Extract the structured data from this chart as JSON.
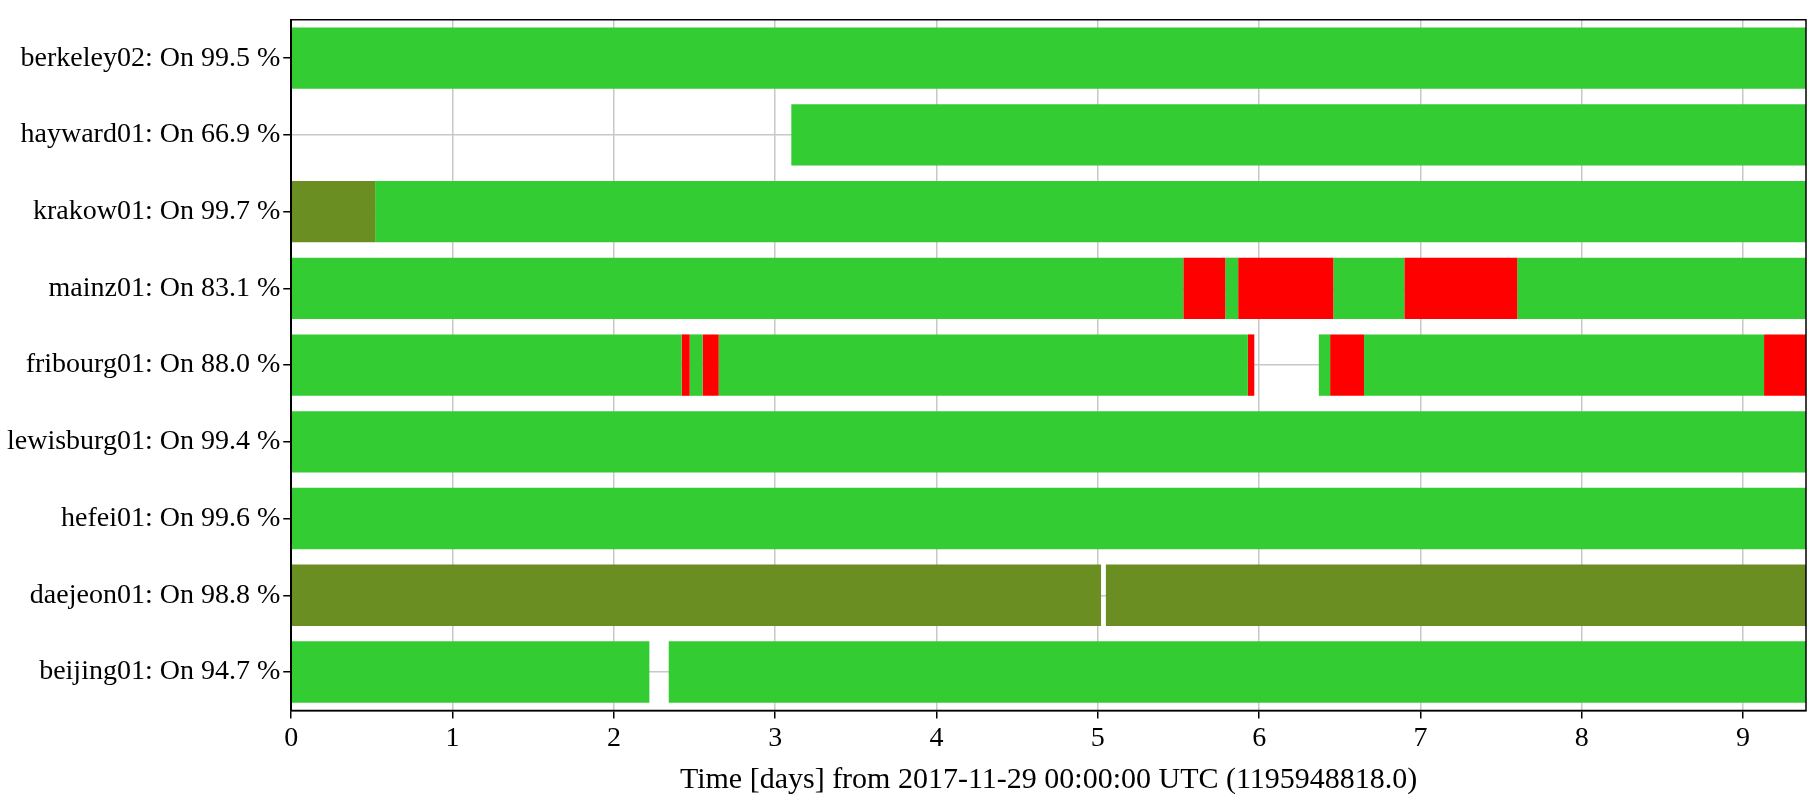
{
  "chart_data": {
    "type": "bar",
    "orientation": "horizontal",
    "xlabel": "Time [days] from 2017-11-29 00:00:00 UTC (1195948818.0)",
    "categories": [
      "berkeley02: On 99.5 %",
      "hayward01: On 66.9 %",
      "krakow01: On 99.7 %",
      "mainz01: On 83.1 %",
      "fribourg01: On 88.0 %",
      "lewisburg01: On 99.4 %",
      "hefei01: On 99.6 %",
      "daejeon01: On 98.8 %",
      "beijing01: On 94.7 %"
    ],
    "xlim": [
      0,
      9.39
    ],
    "xticks": [
      0,
      1,
      2,
      3,
      4,
      5,
      6,
      7,
      8,
      9
    ],
    "grid": true,
    "series": [
      {
        "colors": [
          "#33cc33",
          "#33cc33",
          "#6b8e23",
          "#33cc33",
          "#33cc33",
          "#33cc33",
          "#33cc33",
          "#6b8e23",
          "#33cc33"
        ],
        "base": [
          0,
          3.1,
          0,
          0,
          0,
          0,
          0,
          0,
          0
        ],
        "values": [
          9.39,
          6.29,
          0.52,
          5.53,
          2.42,
          9.39,
          9.39,
          5.02,
          2.22
        ]
      },
      {
        "colors": [
          "#33cc33",
          "#33cc33",
          "#33cc33",
          "#ff0000",
          "#ff0000",
          "#33cc33",
          "#33cc33",
          "#6b8e23",
          "#33cc33"
        ],
        "base": [
          null,
          null,
          0.52,
          5.53,
          2.42,
          null,
          null,
          5.05,
          2.34
        ],
        "values": [
          null,
          null,
          8.87,
          0.26,
          0.05,
          null,
          null,
          4.34,
          7.05
        ]
      },
      {
        "colors": [
          "#33cc33",
          "#33cc33",
          "#33cc33",
          "#33cc33",
          "#33cc33",
          "#33cc33",
          "#33cc33",
          "#33cc33",
          "#33cc33"
        ],
        "base": [
          null,
          null,
          null,
          5.79,
          2.47,
          null,
          null,
          null,
          null
        ],
        "values": [
          null,
          null,
          null,
          0.08,
          0.08,
          null,
          null,
          null,
          null
        ]
      },
      {
        "colors": [
          "#ff0000",
          "#ff0000",
          "#ff0000",
          "#ff0000",
          "#ff0000",
          "#ff0000",
          "#ff0000",
          "#ff0000",
          "#ff0000"
        ],
        "base": [
          null,
          null,
          null,
          5.87,
          2.55,
          null,
          null,
          null,
          null
        ],
        "values": [
          null,
          null,
          null,
          0.59,
          0.1,
          null,
          null,
          null,
          null
        ]
      },
      {
        "colors": [
          "#33cc33",
          "#33cc33",
          "#33cc33",
          "#33cc33",
          "#33cc33",
          "#33cc33",
          "#33cc33",
          "#33cc33",
          "#33cc33"
        ],
        "base": [
          null,
          null,
          null,
          6.46,
          2.65,
          null,
          null,
          null,
          null
        ],
        "values": [
          null,
          null,
          null,
          0.44,
          3.28,
          null,
          null,
          null,
          null
        ]
      },
      {
        "colors": [
          "#ff0000",
          "#ff0000",
          "#ff0000",
          "#ff0000",
          "#ff0000",
          "#ff0000",
          "#ff0000",
          "#ff0000",
          "#ff0000"
        ],
        "base": [
          null,
          null,
          null,
          6.9,
          5.93,
          null,
          null,
          null,
          null
        ],
        "values": [
          null,
          null,
          null,
          0.7,
          0.04,
          null,
          null,
          null,
          null
        ]
      },
      {
        "colors": [
          "#33cc33",
          "#33cc33",
          "#33cc33",
          "#33cc33",
          "#33cc33",
          "#33cc33",
          "#33cc33",
          "#33cc33",
          "#33cc33"
        ],
        "base": [
          null,
          null,
          null,
          7.6,
          6.37,
          null,
          null,
          null,
          null
        ],
        "values": [
          null,
          null,
          null,
          1.79,
          0.07,
          null,
          null,
          null,
          null
        ]
      },
      {
        "colors": [
          "#ff0000",
          "#ff0000",
          "#ff0000",
          "#ff0000",
          "#ff0000",
          "#ff0000",
          "#ff0000",
          "#ff0000",
          "#ff0000"
        ],
        "base": [
          null,
          null,
          null,
          null,
          6.44,
          null,
          null,
          null,
          null
        ],
        "values": [
          null,
          null,
          null,
          null,
          0.21,
          null,
          null,
          null,
          null
        ]
      },
      {
        "colors": [
          "#33cc33",
          "#33cc33",
          "#33cc33",
          "#33cc33",
          "#33cc33",
          "#33cc33",
          "#33cc33",
          "#33cc33",
          "#33cc33"
        ],
        "base": [
          null,
          null,
          null,
          null,
          6.65,
          null,
          null,
          null,
          null
        ],
        "values": [
          null,
          null,
          null,
          null,
          2.48,
          null,
          null,
          null,
          null
        ]
      },
      {
        "colors": [
          "#ff0000",
          "#ff0000",
          "#ff0000",
          "#ff0000",
          "#ff0000",
          "#ff0000",
          "#ff0000",
          "#ff0000",
          "#ff0000"
        ],
        "base": [
          null,
          null,
          null,
          null,
          9.13,
          null,
          null,
          null,
          null
        ],
        "values": [
          null,
          null,
          null,
          null,
          0.26,
          null,
          null,
          null,
          null
        ]
      }
    ]
  }
}
